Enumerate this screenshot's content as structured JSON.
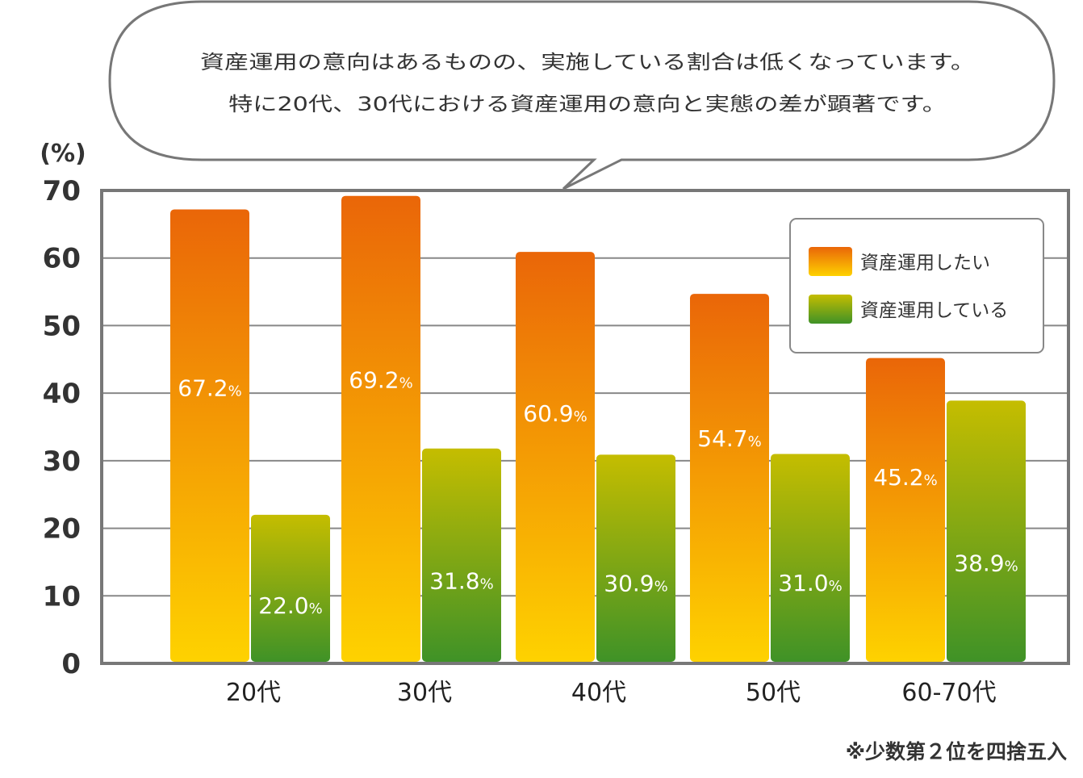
{
  "bubble": {
    "line1": "資産運用の意向はあるものの、実施している割合は低くなっています。",
    "line2": "特に20代、30代における資産運用の意向と実態の差が顕著です。"
  },
  "note": "※少数第２位を四捨五入",
  "colors": {
    "want_top": "#ea6608",
    "want_bottom": "#fed200",
    "doing_top": "#c5bd00",
    "doing_bottom": "#3f9227",
    "frame": "#777777",
    "grid": "#888888"
  },
  "chart_data": {
    "type": "bar",
    "unit_label": "(%)",
    "categories": [
      "20代",
      "30代",
      "40代",
      "50代",
      "60-70代"
    ],
    "ylim": [
      0,
      70
    ],
    "yticks": [
      0,
      10,
      20,
      30,
      40,
      50,
      60,
      70
    ],
    "grid": true,
    "legend_position": "top-right",
    "series": [
      {
        "name": "資産運用したい",
        "values": [
          67.2,
          69.2,
          60.9,
          54.7,
          45.2
        ],
        "labels": [
          "67.2",
          "69.2",
          "60.9",
          "54.7",
          "45.2"
        ]
      },
      {
        "name": "資産運用している",
        "values": [
          22.0,
          31.8,
          30.9,
          31.0,
          38.9
        ],
        "labels": [
          "22.0",
          "31.8",
          "30.9",
          "31.0",
          "38.9"
        ]
      }
    ],
    "value_suffix": "%"
  }
}
